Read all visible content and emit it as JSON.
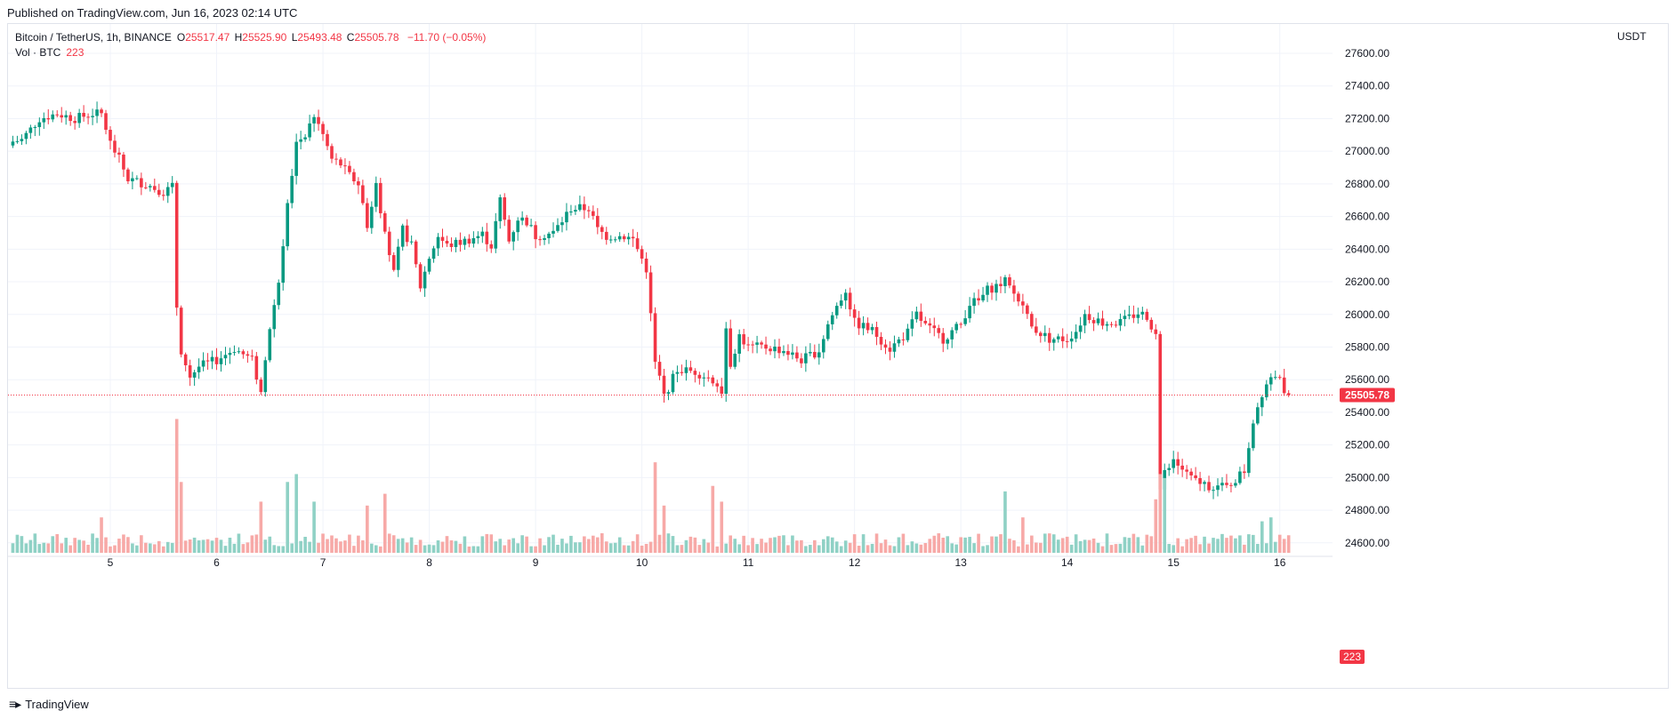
{
  "header": {
    "published": "Published on TradingView.com, Jun 16, 2023 02:14 UTC"
  },
  "legend": {
    "symbol": "Bitcoin / TetherUS, 1h, BINANCE",
    "open_label": "O",
    "open": "25517.47",
    "high_label": "H",
    "high": "25525.90",
    "low_label": "L",
    "low": "25493.48",
    "close_label": "C",
    "close": "25505.78",
    "change": "−11.70 (−0.05%)",
    "volume_label": "Vol · BTC",
    "volume": "223"
  },
  "price_axis": {
    "currency": "USDT",
    "last_price_label": "25505.78",
    "last_volume_label": "223"
  },
  "footer": {
    "brand": "TradingView",
    "brand_icon": "tradingview-logo-icon"
  },
  "colors": {
    "up": "#089981",
    "down": "#f23645",
    "vol_up": "#8fd1c5",
    "vol_down": "#f7a9a7",
    "grid": "#f0f3fa"
  },
  "chart_data": {
    "type": "candlestick",
    "title": "Bitcoin / TetherUS, 1h, BINANCE",
    "interval": "1h",
    "ylabel": "USDT",
    "ylim": [
      24600,
      27700
    ],
    "y_ticks": [
      24600,
      24800,
      25000,
      25200,
      25400,
      25600,
      25800,
      26000,
      26200,
      26400,
      26600,
      26800,
      27000,
      27200,
      27400,
      27600
    ],
    "x_ticks": [
      {
        "label": "5",
        "hour": 24
      },
      {
        "label": "6",
        "hour": 48
      },
      {
        "label": "7",
        "hour": 72
      },
      {
        "label": "8",
        "hour": 96
      },
      {
        "label": "9",
        "hour": 120
      },
      {
        "label": "10",
        "hour": 144
      },
      {
        "label": "11",
        "hour": 168
      },
      {
        "label": "12",
        "hour": 192
      },
      {
        "label": "13",
        "hour": 216
      },
      {
        "label": "14",
        "hour": 240
      },
      {
        "label": "15",
        "hour": 264
      },
      {
        "label": "16",
        "hour": 288
      }
    ],
    "grid": true,
    "last_price": 25505.78,
    "close_anchors": [
      [
        0,
        27050
      ],
      [
        4,
        27070
      ],
      [
        8,
        27200
      ],
      [
        12,
        27230
      ],
      [
        16,
        27200
      ],
      [
        20,
        27230
      ],
      [
        22,
        27230
      ],
      [
        24,
        27050
      ],
      [
        26,
        26950
      ],
      [
        28,
        26830
      ],
      [
        32,
        26800
      ],
      [
        36,
        26750
      ],
      [
        38,
        26780
      ],
      [
        39,
        26050
      ],
      [
        40,
        25780
      ],
      [
        42,
        25620
      ],
      [
        44,
        25680
      ],
      [
        48,
        25720
      ],
      [
        52,
        25790
      ],
      [
        56,
        25720
      ],
      [
        58,
        25520
      ],
      [
        60,
        25920
      ],
      [
        62,
        26200
      ],
      [
        64,
        26680
      ],
      [
        66,
        27050
      ],
      [
        68,
        27110
      ],
      [
        70,
        27220
      ],
      [
        72,
        27100
      ],
      [
        74,
        26950
      ],
      [
        76,
        26920
      ],
      [
        78,
        26850
      ],
      [
        80,
        26800
      ],
      [
        82,
        26550
      ],
      [
        84,
        26800
      ],
      [
        86,
        26500
      ],
      [
        88,
        26250
      ],
      [
        90,
        26520
      ],
      [
        92,
        26420
      ],
      [
        94,
        26170
      ],
      [
        96,
        26350
      ],
      [
        98,
        26480
      ],
      [
        100,
        26420
      ],
      [
        104,
        26450
      ],
      [
        108,
        26490
      ],
      [
        110,
        26420
      ],
      [
        112,
        26700
      ],
      [
        114,
        26450
      ],
      [
        116,
        26590
      ],
      [
        118,
        26570
      ],
      [
        120,
        26480
      ],
      [
        124,
        26500
      ],
      [
        128,
        26650
      ],
      [
        132,
        26650
      ],
      [
        134,
        26520
      ],
      [
        136,
        26480
      ],
      [
        140,
        26480
      ],
      [
        142,
        26460
      ],
      [
        145,
        26280
      ],
      [
        147,
        25700
      ],
      [
        149,
        25500
      ],
      [
        152,
        25660
      ],
      [
        156,
        25650
      ],
      [
        160,
        25600
      ],
      [
        162,
        25530
      ],
      [
        162.5,
        26030
      ],
      [
        164,
        25700
      ],
      [
        166,
        25870
      ],
      [
        168,
        25800
      ],
      [
        172,
        25800
      ],
      [
        176,
        25780
      ],
      [
        180,
        25720
      ],
      [
        184,
        25780
      ],
      [
        186,
        25940
      ],
      [
        188,
        26050
      ],
      [
        190,
        26150
      ],
      [
        192,
        25950
      ],
      [
        196,
        25900
      ],
      [
        200,
        25790
      ],
      [
        204,
        25890
      ],
      [
        206,
        26000
      ],
      [
        208,
        25930
      ],
      [
        212,
        25850
      ],
      [
        216,
        25940
      ],
      [
        218,
        26070
      ],
      [
        220,
        26080
      ],
      [
        222,
        26150
      ],
      [
        226,
        26200
      ],
      [
        230,
        26050
      ],
      [
        232,
        25920
      ],
      [
        236,
        25850
      ],
      [
        240,
        25850
      ],
      [
        242,
        25900
      ],
      [
        244,
        26000
      ],
      [
        248,
        25950
      ],
      [
        252,
        25950
      ],
      [
        256,
        26010
      ],
      [
        258,
        25990
      ],
      [
        260,
        25870
      ],
      [
        261,
        24950
      ],
      [
        262,
        25020
      ],
      [
        264,
        25100
      ],
      [
        266,
        25050
      ],
      [
        268,
        24990
      ],
      [
        272,
        24950
      ],
      [
        276,
        24940
      ],
      [
        280,
        25040
      ],
      [
        282,
        25350
      ],
      [
        284,
        25520
      ],
      [
        286,
        25620
      ],
      [
        288,
        25600
      ],
      [
        289,
        25517.47
      ],
      [
        290,
        25505.78
      ]
    ],
    "volume_scale": [
      0,
      1750
    ],
    "volume_peaks": [
      {
        "hour": 22,
        "volume": 450
      },
      {
        "hour": 39,
        "volume": 1700
      },
      {
        "hour": 40,
        "volume": 900
      },
      {
        "hour": 58,
        "volume": 650
      },
      {
        "hour": 64,
        "volume": 900
      },
      {
        "hour": 66,
        "volume": 1000
      },
      {
        "hour": 70,
        "volume": 650
      },
      {
        "hour": 82,
        "volume": 600
      },
      {
        "hour": 86,
        "volume": 750
      },
      {
        "hour": 147,
        "volume": 1150
      },
      {
        "hour": 149,
        "volume": 600
      },
      {
        "hour": 160,
        "volume": 850
      },
      {
        "hour": 162,
        "volume": 650
      },
      {
        "hour": 226,
        "volume": 780
      },
      {
        "hour": 230,
        "volume": 450
      },
      {
        "hour": 260,
        "volume": 680
      },
      {
        "hour": 261,
        "volume": 1000
      },
      {
        "hour": 262,
        "volume": 950
      },
      {
        "hour": 284,
        "volume": 400
      },
      {
        "hour": 286,
        "volume": 450
      },
      {
        "hour": 290,
        "volume": 223
      }
    ]
  }
}
